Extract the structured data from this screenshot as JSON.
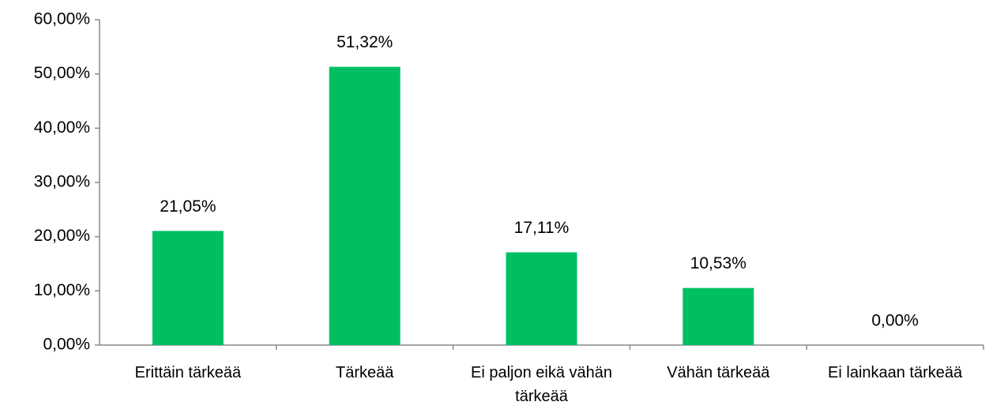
{
  "chart_data": {
    "type": "bar",
    "categories": [
      "Erittäin tärkeää",
      "Tärkeää",
      "Ei paljon eikä vähän tärkeää",
      "Vähän tärkeää",
      "Ei lainkaan tärkeää"
    ],
    "values": [
      21.05,
      51.32,
      17.11,
      10.53,
      0
    ],
    "value_labels": [
      "21,05%",
      "51,32%",
      "17,11%",
      "10,53%",
      "0,00%"
    ],
    "color": "#00bf63",
    "ylim": [
      0,
      60
    ],
    "yticks": [
      {
        "value": 0,
        "label": "0,00%"
      },
      {
        "value": 10,
        "label": "10,00%"
      },
      {
        "value": 20,
        "label": "20,00%"
      },
      {
        "value": 30,
        "label": "30,00%"
      },
      {
        "value": 40,
        "label": "40,00%"
      },
      {
        "value": 50,
        "label": "50,00%"
      },
      {
        "value": 60,
        "label": "60,00%"
      }
    ],
    "grid": false
  }
}
